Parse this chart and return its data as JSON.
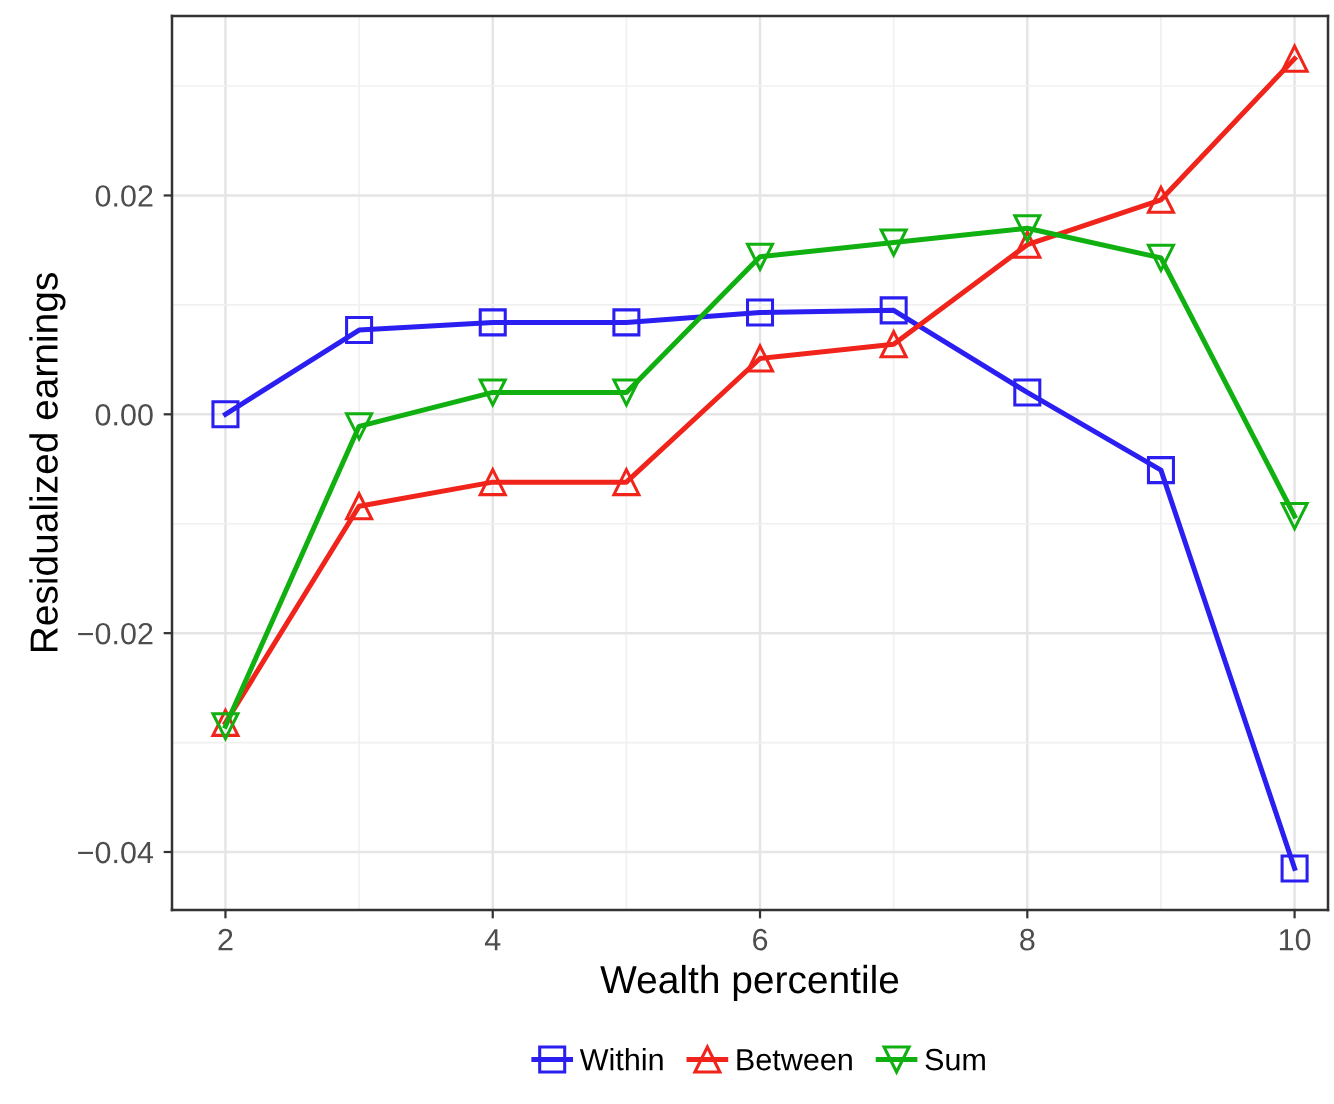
{
  "chart_data": {
    "type": "line",
    "xlabel": "Wealth percentile",
    "ylabel": "Residualized earnings",
    "x": [
      2,
      3,
      4,
      5,
      6,
      7,
      8,
      9,
      10
    ],
    "series": [
      {
        "name": "Within",
        "color": "#2a1ff0",
        "marker": "square",
        "values": [
          0.0,
          0.0077,
          0.0084,
          0.0084,
          0.0093,
          0.0095,
          0.002,
          -0.0051,
          -0.0415
        ]
      },
      {
        "name": "Between",
        "color": "#f0241a",
        "marker": "triangle",
        "values": [
          -0.0282,
          -0.0084,
          -0.0062,
          -0.0062,
          0.0051,
          0.0064,
          0.0155,
          0.0196,
          0.0325
        ]
      },
      {
        "name": "Sum",
        "color": "#10b010",
        "marker": "triangle_down",
        "values": [
          -0.0285,
          -0.0011,
          0.002,
          0.002,
          0.0144,
          0.0157,
          0.017,
          0.0143,
          -0.0093
        ]
      }
    ],
    "xlim": [
      1.6,
      10.25
    ],
    "xticks": [
      2,
      4,
      6,
      8,
      10
    ],
    "ylim": [
      -0.0453,
      0.0364
    ],
    "yticks": [
      {
        "value": -0.04,
        "label": "−0.04"
      },
      {
        "value": -0.02,
        "label": "−0.02"
      },
      {
        "value": 0,
        "label": "0.00"
      },
      {
        "value": 0.02,
        "label": "0.02"
      }
    ],
    "grid": true,
    "legend": "bottom",
    "line_style": "solid"
  }
}
